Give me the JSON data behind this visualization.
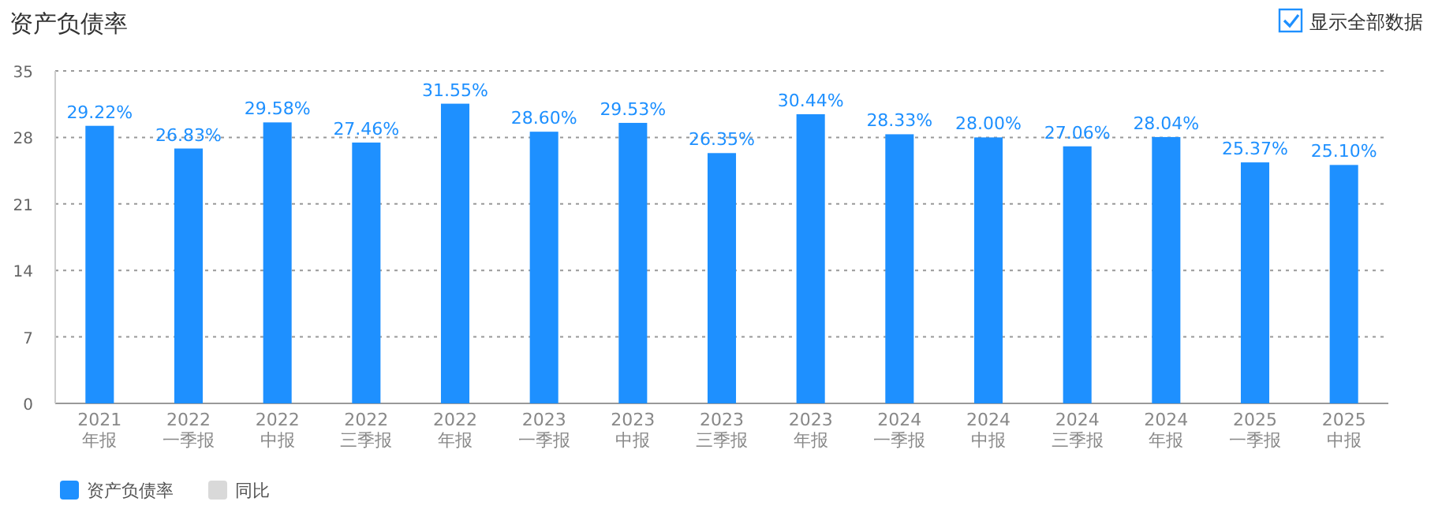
{
  "chart_data": {
    "type": "bar",
    "title": "资产负债率",
    "annotations": [
      "显示全部数据"
    ],
    "categories": [
      "2021\n年报",
      "2022\n一季报",
      "2022\n中报",
      "2022\n三季报",
      "2022\n年报",
      "2023\n一季报",
      "2023\n中报",
      "2023\n三季报",
      "2023\n年报",
      "2024\n一季报",
      "2024\n中报",
      "2024\n三季报",
      "2024\n年报",
      "2025\n一季报",
      "2025\n中报"
    ],
    "series": [
      {
        "name": "资产负债率",
        "color": "#1e90ff",
        "values": [
          29.22,
          26.83,
          29.58,
          27.46,
          31.55,
          28.6,
          29.53,
          26.35,
          30.44,
          28.33,
          28.0,
          27.06,
          28.04,
          25.37,
          25.1
        ],
        "value_labels": [
          "29.22%",
          "26.83%",
          "29.58%",
          "27.46%",
          "31.55%",
          "28.60%",
          "29.53%",
          "26.35%",
          "30.44%",
          "28.33%",
          "28.00%",
          "27.06%",
          "28.04%",
          "25.37%",
          "25.10%"
        ]
      },
      {
        "name": "同比",
        "color": "#d9d9d9",
        "values": [
          null,
          null,
          null,
          null,
          null,
          null,
          null,
          null,
          null,
          null,
          null,
          null,
          null,
          null,
          null
        ]
      }
    ],
    "ylim": [
      0,
      35
    ],
    "yticks": [
      0,
      7,
      14,
      21,
      28,
      35
    ],
    "grid": "y",
    "legend": "bottom"
  }
}
